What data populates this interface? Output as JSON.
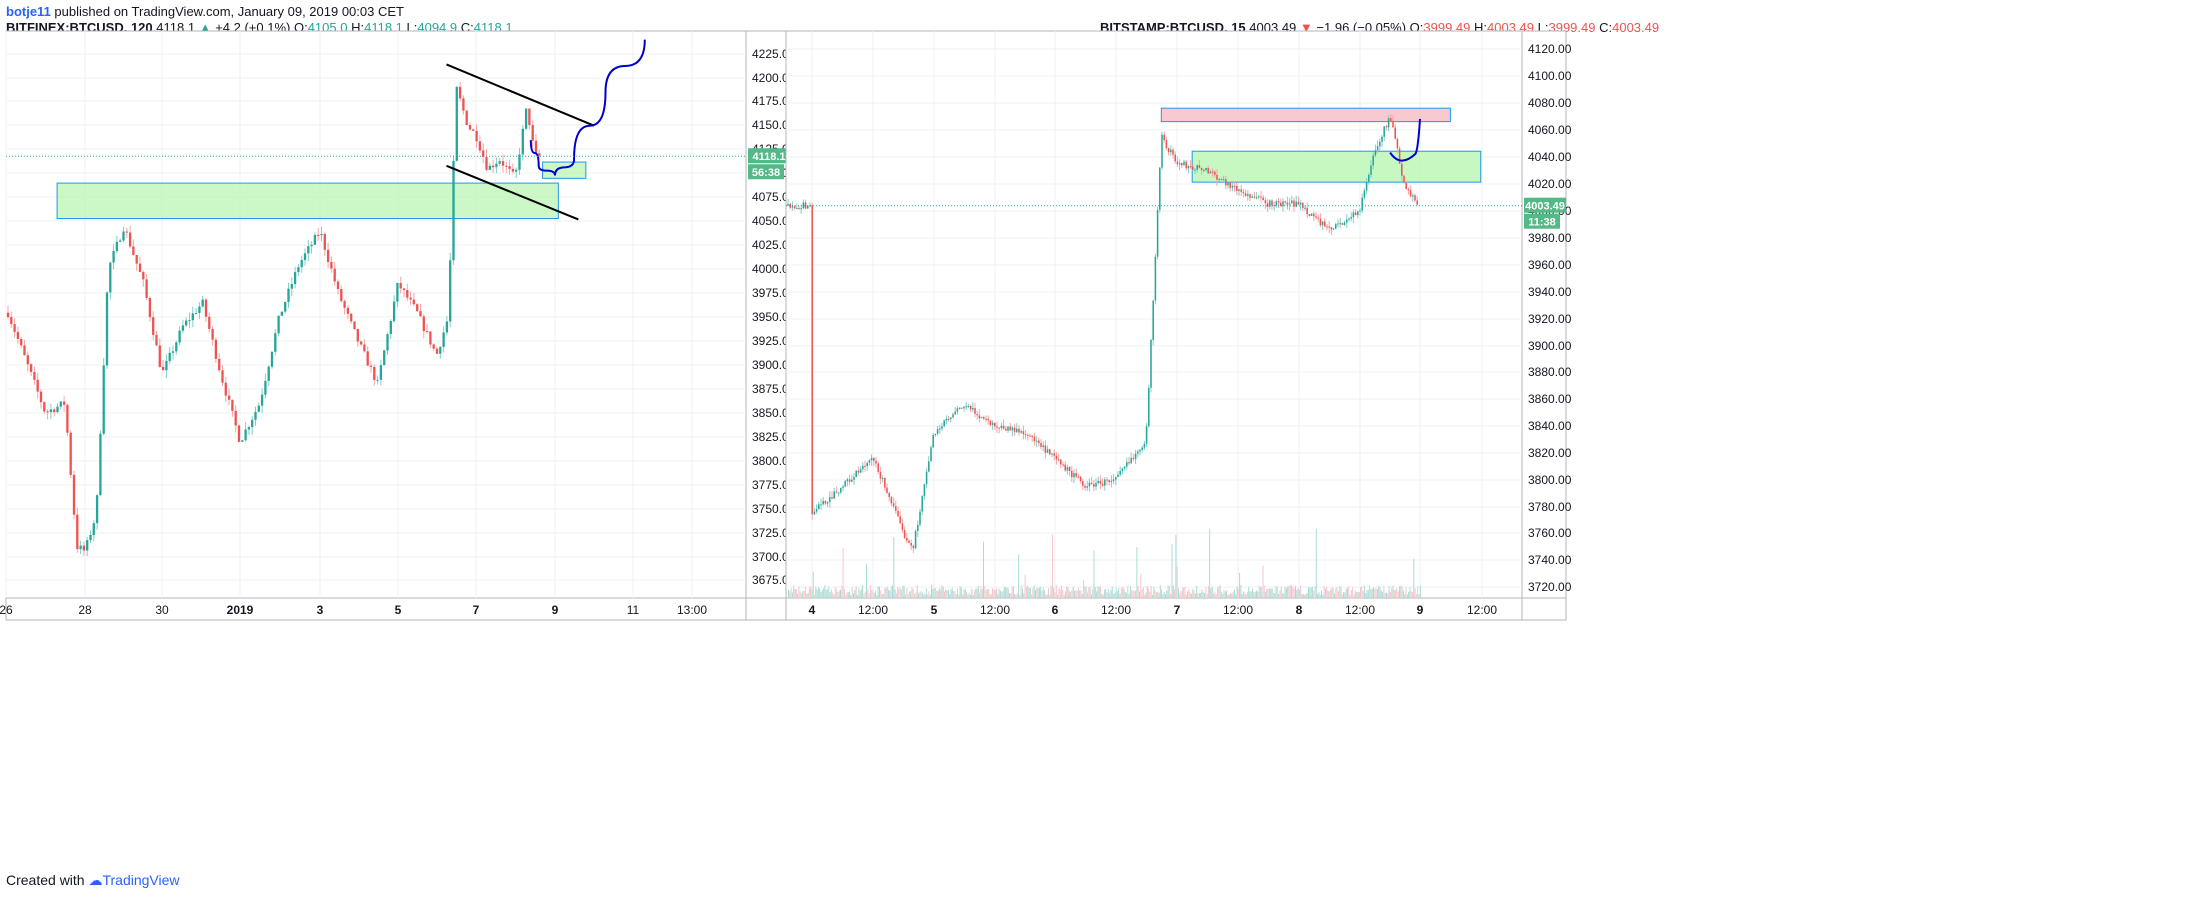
{
  "publisher": {
    "user": "botje11",
    "text": "published on TradingView.com, January 09, 2019 00:03 CET"
  },
  "footer": {
    "created_with": "Created with",
    "brand": "TradingView"
  },
  "colors": {
    "up": "#26a69a",
    "down": "#ef5350",
    "zone_green": "#b9f6b3",
    "zone_red": "#f8bcc4",
    "projection": "#0000cc",
    "trendline": "#000000",
    "grid": "#eef1f5"
  },
  "charts": [
    {
      "header": {
        "symbol": "BITFINEX:BTCUSD, 120",
        "last": "4118.1",
        "change": "+4.2 (+0.1%)",
        "o_label": "O:",
        "o": "4105.0",
        "h_label": "H:",
        "h": "4118.1",
        "l_label": "L:",
        "l": "4094.9",
        "c_label": "C:",
        "c": "4118.1"
      },
      "price_tag": "4118.1",
      "timer_tag": "56:38",
      "y_ticks": [
        "3675.0",
        "3700.0",
        "3725.0",
        "3750.0",
        "3775.0",
        "3800.0",
        "3825.0",
        "3850.0",
        "3875.0",
        "3900.0",
        "3925.0",
        "3950.0",
        "3975.0",
        "4000.0",
        "4025.0",
        "4050.0",
        "4075.0",
        "4100.0",
        "4125.0",
        "4150.0",
        "4175.0",
        "4200.0",
        "4225.0"
      ],
      "x_ticks": [
        "26",
        "28",
        "30",
        "2019",
        "3",
        "5",
        "7",
        "9",
        "11",
        "13:00"
      ]
    },
    {
      "header": {
        "symbol": "BITSTAMP:BTCUSD, 15",
        "last": "4003.49",
        "change": "−1.96 (−0.05%)",
        "o_label": "O:",
        "o": "3999.49",
        "h_label": "H:",
        "h": "4003.49",
        "l_label": "L:",
        "l": "3999.49",
        "c_label": "C:",
        "c": "4003.49"
      },
      "price_tag": "4003.49",
      "timer_tag": "11:38",
      "y_ticks": [
        "3720.00",
        "3740.00",
        "3760.00",
        "3780.00",
        "3800.00",
        "3820.00",
        "3840.00",
        "3860.00",
        "3880.00",
        "3900.00",
        "3920.00",
        "3940.00",
        "3960.00",
        "3980.00",
        "4000.00",
        "4020.00",
        "4040.00",
        "4060.00",
        "4080.00",
        "4100.00",
        "4120.00"
      ],
      "x_ticks": [
        "4",
        "12:00",
        "5",
        "12:00",
        "6",
        "12:00",
        "7",
        "12:00",
        "8",
        "12:00",
        "9",
        "12:00"
      ]
    }
  ],
  "chart_data": [
    {
      "type": "candlestick",
      "symbol": "BITFINEX:BTCUSD",
      "timeframe": "120",
      "ylim": [
        3660,
        4245
      ],
      "x_labels": [
        "26",
        "28",
        "30",
        "2019",
        "3",
        "5",
        "7",
        "9",
        "11",
        "13:00"
      ],
      "last_price": 4118.1,
      "close_path": [
        {
          "x": "26",
          "y": 3960
        },
        {
          "x": "26.5",
          "y": 3905
        },
        {
          "x": "27",
          "y": 3850
        },
        {
          "x": "27.5",
          "y": 3860
        },
        {
          "x": "27.8",
          "y": 3710
        },
        {
          "x": "28",
          "y": 3705
        },
        {
          "x": "28.3",
          "y": 3745
        },
        {
          "x": "28.6",
          "y": 4000
        },
        {
          "x": "29",
          "y": 4045
        },
        {
          "x": "29.5",
          "y": 3985
        },
        {
          "x": "30",
          "y": 3890
        },
        {
          "x": "30.5",
          "y": 3940
        },
        {
          "x": "31",
          "y": 3965
        },
        {
          "x": "31.5",
          "y": 3885
        },
        {
          "x": "2019",
          "y": 3820
        },
        {
          "x": "1.5",
          "y": 3860
        },
        {
          "x": "2",
          "y": 3950
        },
        {
          "x": "2.5",
          "y": 4005
        },
        {
          "x": "3",
          "y": 4040
        },
        {
          "x": "3.5",
          "y": 3975
        },
        {
          "x": "4",
          "y": 3925
        },
        {
          "x": "4.5",
          "y": 3880
        },
        {
          "x": "5",
          "y": 3985
        },
        {
          "x": "5.5",
          "y": 3955
        },
        {
          "x": "6",
          "y": 3910
        },
        {
          "x": "6.3",
          "y": 3950
        },
        {
          "x": "6.5",
          "y": 4190
        },
        {
          "x": "6.8",
          "y": 4150
        },
        {
          "x": "7",
          "y": 4140
        },
        {
          "x": "7.3",
          "y": 4105
        },
        {
          "x": "7.6",
          "y": 4115
        },
        {
          "x": "8",
          "y": 4095
        },
        {
          "x": "8.3",
          "y": 4170
        },
        {
          "x": "8.5",
          "y": 4118
        }
      ],
      "zones": [
        {
          "color": "green",
          "x_from": "27.3",
          "x_to": "9.1",
          "y_from": 4053,
          "y_to": 4090
        },
        {
          "color": "green",
          "x_from": "8.7",
          "x_to": "9.8",
          "y_from": 4095,
          "y_to": 4112
        }
      ],
      "trendlines": [
        {
          "from": {
            "x": "6",
            "y": 4212
          },
          "to": {
            "x": "9.5",
            "y": 4150
          }
        },
        {
          "from": {
            "x": "6",
            "y": 4106
          },
          "to": {
            "x": "9.1",
            "y": 4052
          }
        }
      ],
      "projection": [
        {
          "x": "8.4",
          "y": 4135
        },
        {
          "x": "8.6",
          "y": 4108
        },
        {
          "x": "9",
          "y": 4098
        },
        {
          "x": "9.5",
          "y": 4115
        },
        {
          "x": "10.3",
          "y": 4185
        },
        {
          "x": "11.3",
          "y": 4240
        }
      ]
    },
    {
      "type": "candlestick",
      "symbol": "BITSTAMP:BTCUSD",
      "timeframe": "15",
      "ylim": [
        3710,
        4130
      ],
      "x_labels": [
        "4",
        "12:00",
        "5",
        "12:00",
        "6",
        "12:00",
        "7",
        "12:00",
        "8",
        "12:00",
        "9",
        "12:00"
      ],
      "last_price": 4003.49,
      "volume": true,
      "close_path": [
        {
          "x": "4 00:00",
          "y": 3775
        },
        {
          "x": "4 06:00",
          "y": 3795
        },
        {
          "x": "4 12:00",
          "y": 3815
        },
        {
          "x": "4 15:00",
          "y": 3790
        },
        {
          "x": "4 18:00",
          "y": 3760
        },
        {
          "x": "4 20:00",
          "y": 3750
        },
        {
          "x": "5 00:00",
          "y": 3835
        },
        {
          "x": "5 06:00",
          "y": 3855
        },
        {
          "x": "5 12:00",
          "y": 3840
        },
        {
          "x": "5 18:00",
          "y": 3835
        },
        {
          "x": "6 00:00",
          "y": 3815
        },
        {
          "x": "6 06:00",
          "y": 3795
        },
        {
          "x": "6 12:00",
          "y": 3800
        },
        {
          "x": "6 18:00",
          "y": 3830
        },
        {
          "x": "6 21:00",
          "y": 4055
        },
        {
          "x": "7 00:00",
          "y": 4035
        },
        {
          "x": "7 06:00",
          "y": 4030
        },
        {
          "x": "7 12:00",
          "y": 4015
        },
        {
          "x": "7 18:00",
          "y": 4005
        },
        {
          "x": "8 00:00",
          "y": 4005
        },
        {
          "x": "8 06:00",
          "y": 3985
        },
        {
          "x": "8 12:00",
          "y": 4000
        },
        {
          "x": "8 15:00",
          "y": 4045
        },
        {
          "x": "8 18:00",
          "y": 4070
        },
        {
          "x": "8 21:00",
          "y": 4015
        },
        {
          "x": "9 00:00",
          "y": 4003.49
        }
      ],
      "zones": [
        {
          "color": "red",
          "x_from": "6 21:00",
          "x_to": "9 06:00",
          "y_from": 4066,
          "y_to": 4076
        },
        {
          "color": "green",
          "x_from": "7 03:00",
          "x_to": "9 12:00",
          "y_from": 4021,
          "y_to": 4044
        }
      ],
      "projection": [
        {
          "x": "8 18:00",
          "y": 4043
        },
        {
          "x": "8 20:00",
          "y": 4036
        },
        {
          "x": "8 23:00",
          "y": 4042
        },
        {
          "x": "9 00:00",
          "y": 4068
        }
      ]
    }
  ]
}
